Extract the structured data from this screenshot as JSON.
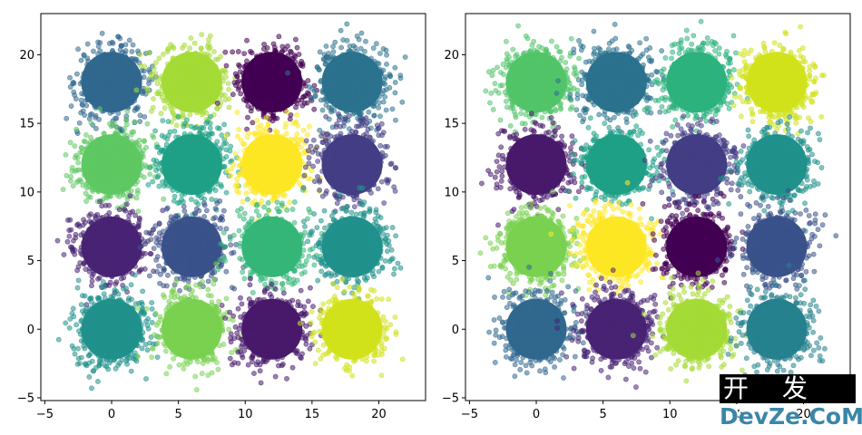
{
  "chart_data": [
    {
      "type": "scatter",
      "title": "",
      "xlabel": "",
      "ylabel": "",
      "xlim": [
        -5.3,
        23.5
      ],
      "ylim": [
        -5.2,
        23.0
      ],
      "xticks": [
        -5,
        0,
        5,
        10,
        15,
        20
      ],
      "yticks": [
        -5,
        0,
        5,
        10,
        15,
        20
      ],
      "colormap": "viridis",
      "cluster_spread": 1.3,
      "clusters": [
        {
          "x": 0,
          "y": 18,
          "color": "#31688e"
        },
        {
          "x": 6,
          "y": 18,
          "color": "#a5db36"
        },
        {
          "x": 12,
          "y": 18,
          "color": "#440154"
        },
        {
          "x": 18,
          "y": 18,
          "color": "#2c728e"
        },
        {
          "x": 0,
          "y": 12,
          "color": "#5ec962"
        },
        {
          "x": 6,
          "y": 12,
          "color": "#1fa187"
        },
        {
          "x": 12,
          "y": 12,
          "color": "#fde725"
        },
        {
          "x": 18,
          "y": 12,
          "color": "#433e85"
        },
        {
          "x": 0,
          "y": 6,
          "color": "#482475"
        },
        {
          "x": 6,
          "y": 6,
          "color": "#3b528b"
        },
        {
          "x": 12,
          "y": 6,
          "color": "#35b779"
        },
        {
          "x": 18,
          "y": 6,
          "color": "#21918c"
        },
        {
          "x": 0,
          "y": 0,
          "color": "#21918c"
        },
        {
          "x": 6,
          "y": 0,
          "color": "#7ad151"
        },
        {
          "x": 12,
          "y": 0,
          "color": "#481a6c"
        },
        {
          "x": 18,
          "y": 0,
          "color": "#d2e21b"
        }
      ]
    },
    {
      "type": "scatter",
      "title": "",
      "xlabel": "",
      "ylabel": "",
      "xlim": [
        -5.3,
        23.5
      ],
      "ylim": [
        -5.2,
        23.0
      ],
      "xticks": [
        -5,
        0,
        5,
        10,
        15,
        20
      ],
      "yticks": [
        -5,
        0,
        5,
        10,
        15,
        20
      ],
      "colormap": "viridis",
      "cluster_spread": 1.3,
      "clusters": [
        {
          "x": 0,
          "y": 18,
          "color": "#52c569"
        },
        {
          "x": 6,
          "y": 18,
          "color": "#2c728e"
        },
        {
          "x": 12,
          "y": 18,
          "color": "#2db27d"
        },
        {
          "x": 18,
          "y": 18,
          "color": "#d2e21b"
        },
        {
          "x": 0,
          "y": 12,
          "color": "#481a6c"
        },
        {
          "x": 6,
          "y": 12,
          "color": "#1fa187"
        },
        {
          "x": 12,
          "y": 12,
          "color": "#433e85"
        },
        {
          "x": 18,
          "y": 12,
          "color": "#21918c"
        },
        {
          "x": 0,
          "y": 6,
          "color": "#7ad151"
        },
        {
          "x": 6,
          "y": 6,
          "color": "#fde725"
        },
        {
          "x": 12,
          "y": 6,
          "color": "#440154"
        },
        {
          "x": 18,
          "y": 6,
          "color": "#3b528b"
        },
        {
          "x": 0,
          "y": 0,
          "color": "#31688e"
        },
        {
          "x": 6,
          "y": 0,
          "color": "#482475"
        },
        {
          "x": 12,
          "y": 0,
          "color": "#a5db36"
        },
        {
          "x": 18,
          "y": 0,
          "color": "#26828e"
        }
      ]
    }
  ],
  "watermark": {
    "line1": "开 发 者",
    "line2": "DevZe.CoM"
  }
}
